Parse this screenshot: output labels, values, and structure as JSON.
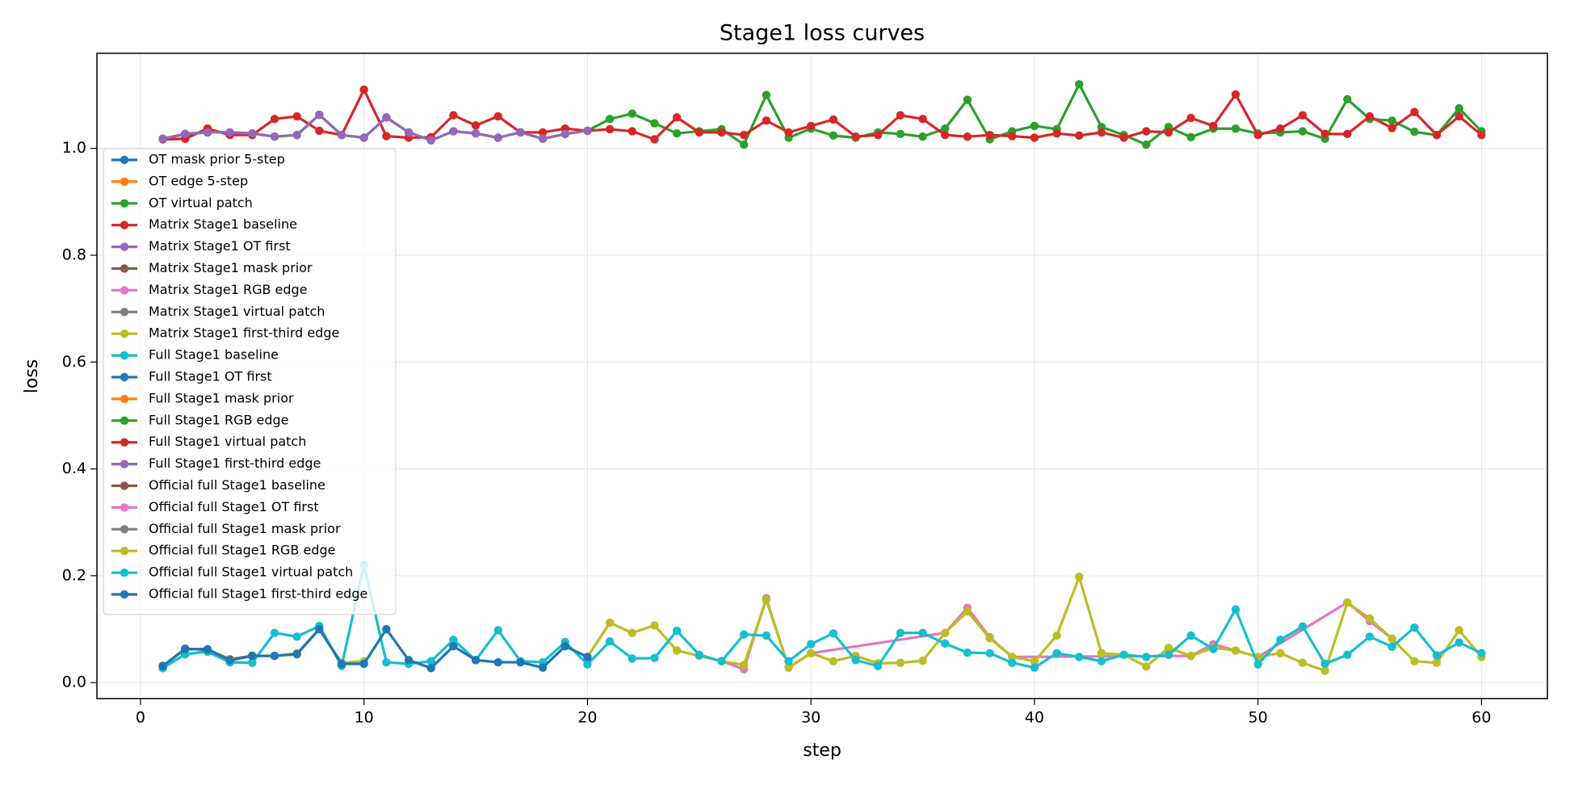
{
  "chart_data": {
    "type": "line",
    "title": "Stage1 loss curves",
    "x_label": "step",
    "y_label": "loss",
    "xlim": [
      -1.95,
      62.95
    ],
    "ylim": [
      -0.03,
      1.178
    ],
    "xticks": [
      0,
      10,
      20,
      30,
      40,
      50,
      60
    ],
    "yticks": [
      {
        "value": 0,
        "label": "0.0"
      },
      0.2,
      0.4,
      0.6,
      0.8,
      {
        "value": 1,
        "label": "1.0"
      }
    ],
    "grid": true,
    "legend": "upper left",
    "series": [
      {
        "name": "OT mask prior 5-step",
        "color": "#1f77b4",
        "x": [
          1,
          2,
          3,
          4,
          5
        ],
        "values": [
          0.031,
          0.063,
          0.062,
          0.042,
          0.05
        ]
      },
      {
        "name": "OT edge 5-step",
        "color": "#ff7f0e",
        "x": [
          1,
          2,
          3,
          4,
          5
        ],
        "values": [
          0.031,
          0.063,
          0.062,
          0.044,
          0.05
        ]
      },
      {
        "name": "OT virtual patch",
        "color": "#2ca02c",
        "x": [
          1,
          2,
          3
        ],
        "values": [
          1.018,
          1.027,
          1.03
        ]
      },
      {
        "name": "Matrix Stage1 baseline",
        "color": "#d62728",
        "x": [
          1,
          2,
          3
        ],
        "values": [
          1.017,
          1.018,
          1.037
        ]
      },
      {
        "name": "Matrix Stage1 OT first",
        "color": "#9467bd",
        "x": [
          1,
          2,
          3
        ],
        "values": [
          1.018,
          1.027,
          1.03
        ]
      },
      {
        "name": "Matrix Stage1 mask prior",
        "color": "#8c564b",
        "x": [
          1,
          2,
          3,
          4,
          5
        ],
        "values": [
          0.031,
          0.063,
          0.062,
          0.042,
          0.05
        ]
      },
      {
        "name": "Matrix Stage1 RGB edge",
        "color": "#e377c2",
        "x": [
          1,
          2,
          3,
          4,
          5
        ],
        "values": [
          0.031,
          0.063,
          0.062,
          0.042,
          0.05
        ]
      },
      {
        "name": "Matrix Stage1 virtual patch",
        "color": "#7f7f7f",
        "x": [
          1,
          2,
          3,
          4,
          5
        ],
        "values": [
          0.031,
          0.063,
          0.062,
          0.042,
          0.05
        ]
      },
      {
        "name": "Matrix Stage1 first-third edge",
        "color": "#bcbd22",
        "x": [
          1,
          2,
          3,
          4,
          5,
          6,
          7,
          8,
          9,
          10
        ],
        "values": [
          0.031,
          0.063,
          0.062,
          0.042,
          0.05,
          0.05,
          0.055,
          0.1,
          0.037,
          0.04
        ]
      },
      {
        "name": "Full Stage1 baseline",
        "color": "#17becf",
        "x": [
          1,
          2,
          3,
          4,
          5
        ],
        "values": [
          0.027,
          0.053,
          0.058,
          0.038,
          0.037
        ]
      },
      {
        "name": "Full Stage1 OT first",
        "color": "#1f77b4",
        "x": [
          1,
          2,
          3,
          4,
          5
        ],
        "values": [
          0.031,
          0.063,
          0.062,
          0.042,
          0.05
        ]
      },
      {
        "name": "Full Stage1 mask prior",
        "color": "#ff7f0e",
        "x": [
          1,
          2,
          3,
          4,
          5
        ],
        "values": [
          0.031,
          0.063,
          0.062,
          0.042,
          0.05
        ]
      },
      {
        "name": "Full Stage1 RGB edge",
        "color": "#2ca02c",
        "x": [
          1,
          2,
          3,
          4,
          5,
          6,
          7,
          8,
          9,
          10,
          11,
          12,
          13,
          14,
          15,
          16,
          17,
          18,
          19,
          20,
          21,
          22,
          23,
          24,
          25,
          26,
          27,
          28,
          29,
          30,
          31,
          32,
          33,
          34,
          35,
          36,
          37,
          38,
          39,
          40,
          41,
          42,
          43,
          44,
          45,
          46,
          47,
          48,
          49,
          50,
          51,
          52,
          53,
          54,
          55,
          56,
          57,
          58,
          59,
          60
        ],
        "values": [
          1.018,
          1.027,
          1.03,
          1.03,
          1.028,
          1.022,
          1.025,
          1.063,
          1.025,
          1.02,
          1.058,
          1.03,
          1.015,
          1.032,
          1.028,
          1.02,
          1.03,
          1.018,
          1.027,
          1.033,
          1.055,
          1.065,
          1.047,
          1.028,
          1.032,
          1.036,
          1.007,
          1.1,
          1.02,
          1.037,
          1.024,
          1.02,
          1.03,
          1.027,
          1.022,
          1.037,
          1.091,
          1.017,
          1.032,
          1.042,
          1.036,
          1.12,
          1.04,
          1.025,
          1.007,
          1.04,
          1.021,
          1.037,
          1.037,
          1.028,
          1.03,
          1.032,
          1.018,
          1.092,
          1.055,
          1.052,
          1.031,
          1.025,
          1.075,
          1.032
        ]
      },
      {
        "name": "Full Stage1 virtual patch",
        "color": "#d62728",
        "x": [
          1,
          2,
          3,
          4,
          5,
          6,
          7,
          8,
          9,
          10,
          11,
          12,
          13,
          14,
          15,
          16,
          17,
          18,
          19,
          20,
          21,
          22,
          23,
          24,
          25,
          26,
          27,
          28,
          29,
          30,
          31,
          32,
          33,
          34,
          35,
          36,
          37,
          38,
          39,
          40,
          41,
          42,
          43,
          44,
          45,
          46,
          47,
          48,
          49,
          50,
          51,
          52,
          53,
          54,
          55,
          56,
          57,
          58,
          59,
          60
        ],
        "values": [
          1.017,
          1.018,
          1.037,
          1.025,
          1.025,
          1.055,
          1.06,
          1.033,
          1.025,
          1.11,
          1.023,
          1.02,
          1.021,
          1.062,
          1.043,
          1.06,
          1.03,
          1.03,
          1.037,
          1.033,
          1.036,
          1.032,
          1.017,
          1.058,
          1.03,
          1.03,
          1.025,
          1.052,
          1.03,
          1.042,
          1.054,
          1.022,
          1.025,
          1.062,
          1.055,
          1.025,
          1.022,
          1.025,
          1.023,
          1.02,
          1.028,
          1.024,
          1.03,
          1.02,
          1.032,
          1.03,
          1.057,
          1.042,
          1.101,
          1.025,
          1.037,
          1.062,
          1.027,
          1.027,
          1.06,
          1.038,
          1.068,
          1.025,
          1.06,
          1.025
        ]
      },
      {
        "name": "Full Stage1 first-third edge",
        "color": "#9467bd",
        "x": [
          1,
          2,
          3,
          4,
          5,
          6,
          7,
          8,
          9,
          10,
          11,
          12,
          13,
          14,
          15,
          16,
          17,
          18,
          19,
          20
        ],
        "values": [
          1.018,
          1.027,
          1.03,
          1.03,
          1.028,
          1.022,
          1.025,
          1.063,
          1.025,
          1.02,
          1.058,
          1.03,
          1.015,
          1.032,
          1.028,
          1.02,
          1.03,
          1.018,
          1.027,
          1.033
        ]
      },
      {
        "name": "Official full Stage1 baseline",
        "color": "#8c564b",
        "x": [
          1,
          2,
          3,
          4,
          5
        ],
        "values": [
          0.031,
          0.063,
          0.062,
          0.042,
          0.05
        ]
      },
      {
        "name": "Official full Stage1 OT first",
        "color": "#e377c2",
        "x": [
          26,
          27,
          28,
          29,
          30,
          36,
          37,
          38,
          39,
          47,
          48,
          49,
          50,
          54,
          55,
          56
        ],
        "values": [
          0.04,
          0.025,
          0.158,
          0.028,
          0.055,
          0.093,
          0.14,
          0.085,
          0.048,
          0.05,
          0.072,
          0.06,
          0.048,
          0.15,
          0.115,
          0.082
        ]
      },
      {
        "name": "Official full Stage1 mask prior",
        "color": "#7f7f7f",
        "x": [
          1,
          2,
          3,
          4,
          5
        ],
        "values": [
          0.031,
          0.063,
          0.062,
          0.042,
          0.05
        ]
      },
      {
        "name": "Official full Stage1 RGB edge",
        "color": "#bcbd22",
        "x": [
          20,
          21,
          22,
          23,
          24,
          25,
          26,
          27,
          28,
          29,
          30,
          31,
          32,
          33,
          34,
          35,
          36,
          37,
          38,
          39,
          40,
          41,
          42,
          43,
          44,
          45,
          46,
          47,
          48,
          49,
          50,
          51,
          52,
          53,
          54,
          55,
          56,
          57,
          58,
          59,
          60
        ],
        "values": [
          0.048,
          0.112,
          0.093,
          0.107,
          0.06,
          0.05,
          0.04,
          0.033,
          0.155,
          0.028,
          0.055,
          0.04,
          0.05,
          0.036,
          0.037,
          0.041,
          0.093,
          0.133,
          0.083,
          0.048,
          0.04,
          0.088,
          0.198,
          0.055,
          0.052,
          0.03,
          0.065,
          0.05,
          0.065,
          0.06,
          0.048,
          0.055,
          0.037,
          0.022,
          0.15,
          0.12,
          0.082,
          0.04,
          0.037,
          0.098,
          0.048
        ]
      },
      {
        "name": "Official full Stage1 virtual patch",
        "color": "#17becf",
        "x": [
          1,
          2,
          3,
          4,
          5,
          6,
          7,
          8,
          9,
          10,
          11,
          12,
          13,
          14,
          15,
          16,
          17,
          18,
          19,
          20,
          21,
          22,
          23,
          24,
          25,
          26,
          27,
          28,
          29,
          30,
          31,
          32,
          33,
          34,
          35,
          36,
          37,
          38,
          39,
          40,
          41,
          42,
          43,
          44,
          45,
          46,
          47,
          48,
          49,
          50,
          51,
          52,
          53,
          54,
          55,
          56,
          57,
          58,
          59,
          60
        ],
        "values": [
          0.027,
          0.053,
          0.058,
          0.038,
          0.037,
          0.093,
          0.086,
          0.106,
          0.031,
          0.22,
          0.038,
          0.035,
          0.04,
          0.08,
          0.042,
          0.098,
          0.04,
          0.038,
          0.076,
          0.034,
          0.077,
          0.045,
          0.046,
          0.097,
          0.052,
          0.04,
          0.09,
          0.088,
          0.04,
          0.072,
          0.092,
          0.042,
          0.031,
          0.093,
          0.093,
          0.073,
          0.056,
          0.055,
          0.037,
          0.028,
          0.055,
          0.048,
          0.04,
          0.052,
          0.048,
          0.052,
          0.088,
          0.063,
          0.137,
          0.034,
          0.08,
          0.105,
          0.035,
          0.052,
          0.086,
          0.067,
          0.103,
          0.051,
          0.075,
          0.055
        ]
      },
      {
        "name": "Official full Stage1 first-third edge",
        "color": "#1f77b4",
        "x": [
          1,
          2,
          3,
          4,
          5,
          6,
          7,
          8,
          9,
          10,
          11,
          12,
          13,
          14,
          15,
          16,
          17,
          18,
          19,
          20
        ],
        "values": [
          0.031,
          0.063,
          0.062,
          0.042,
          0.05,
          0.05,
          0.053,
          0.1,
          0.035,
          0.035,
          0.1,
          0.042,
          0.027,
          0.068,
          0.042,
          0.038,
          0.038,
          0.028,
          0.068,
          0.048
        ]
      }
    ]
  }
}
